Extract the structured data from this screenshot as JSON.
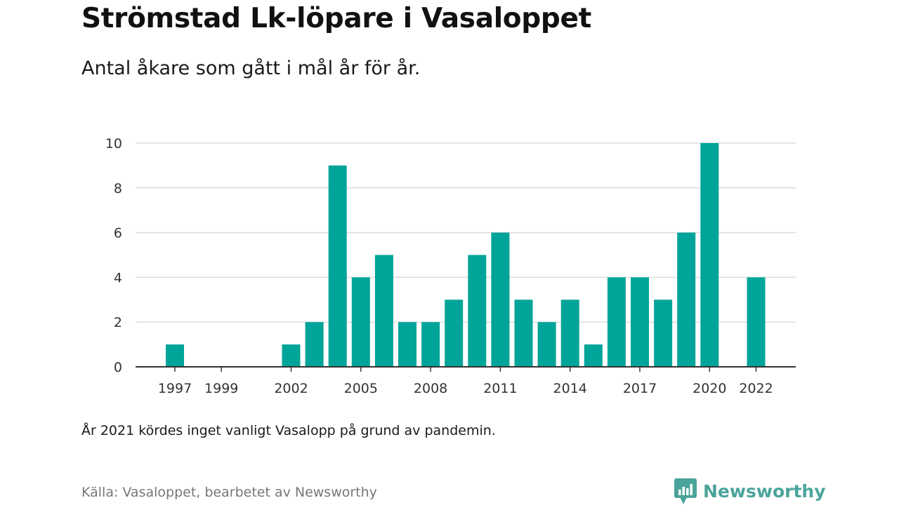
{
  "title": "Strömstad Lk-löpare i Vasaloppet",
  "subtitle": "Antal åkare som gått i mål år för år.",
  "note": "År 2021 kördes inget vanligt Vasalopp på grund av pandemin.",
  "source": "Källa: Vasaloppet, bearbetet av Newsworthy",
  "brand": {
    "name": "Newsworthy",
    "icon": "newsworthy-logo-icon",
    "color": "#4ba49b"
  },
  "colors": {
    "bar": "#00a499",
    "grid": "#dddddd",
    "axis": "#333333"
  },
  "chart_data": {
    "type": "bar",
    "title": "Strömstad Lk-löpare i Vasaloppet",
    "subtitle": "Antal åkare som gått i mål år för år.",
    "xlabel": "",
    "ylabel": "",
    "ylim": [
      0,
      10
    ],
    "yticks": [
      0,
      2,
      4,
      6,
      8,
      10
    ],
    "xtick_labels": [
      "1997",
      "1999",
      "2002",
      "2005",
      "2008",
      "2011",
      "2014",
      "2017",
      "2020",
      "2022"
    ],
    "grid": true,
    "legend": "none",
    "categories": [
      "1997",
      "1998",
      "1999",
      "2000",
      "2001",
      "2002",
      "2003",
      "2004",
      "2005",
      "2006",
      "2007",
      "2008",
      "2009",
      "2010",
      "2011",
      "2012",
      "2013",
      "2014",
      "2015",
      "2016",
      "2017",
      "2018",
      "2019",
      "2020",
      "2021",
      "2022"
    ],
    "values": [
      1,
      0,
      0,
      0,
      0,
      1,
      2,
      9,
      4,
      5,
      2,
      2,
      3,
      5,
      6,
      3,
      2,
      3,
      1,
      4,
      4,
      3,
      6,
      10,
      null,
      4
    ]
  }
}
